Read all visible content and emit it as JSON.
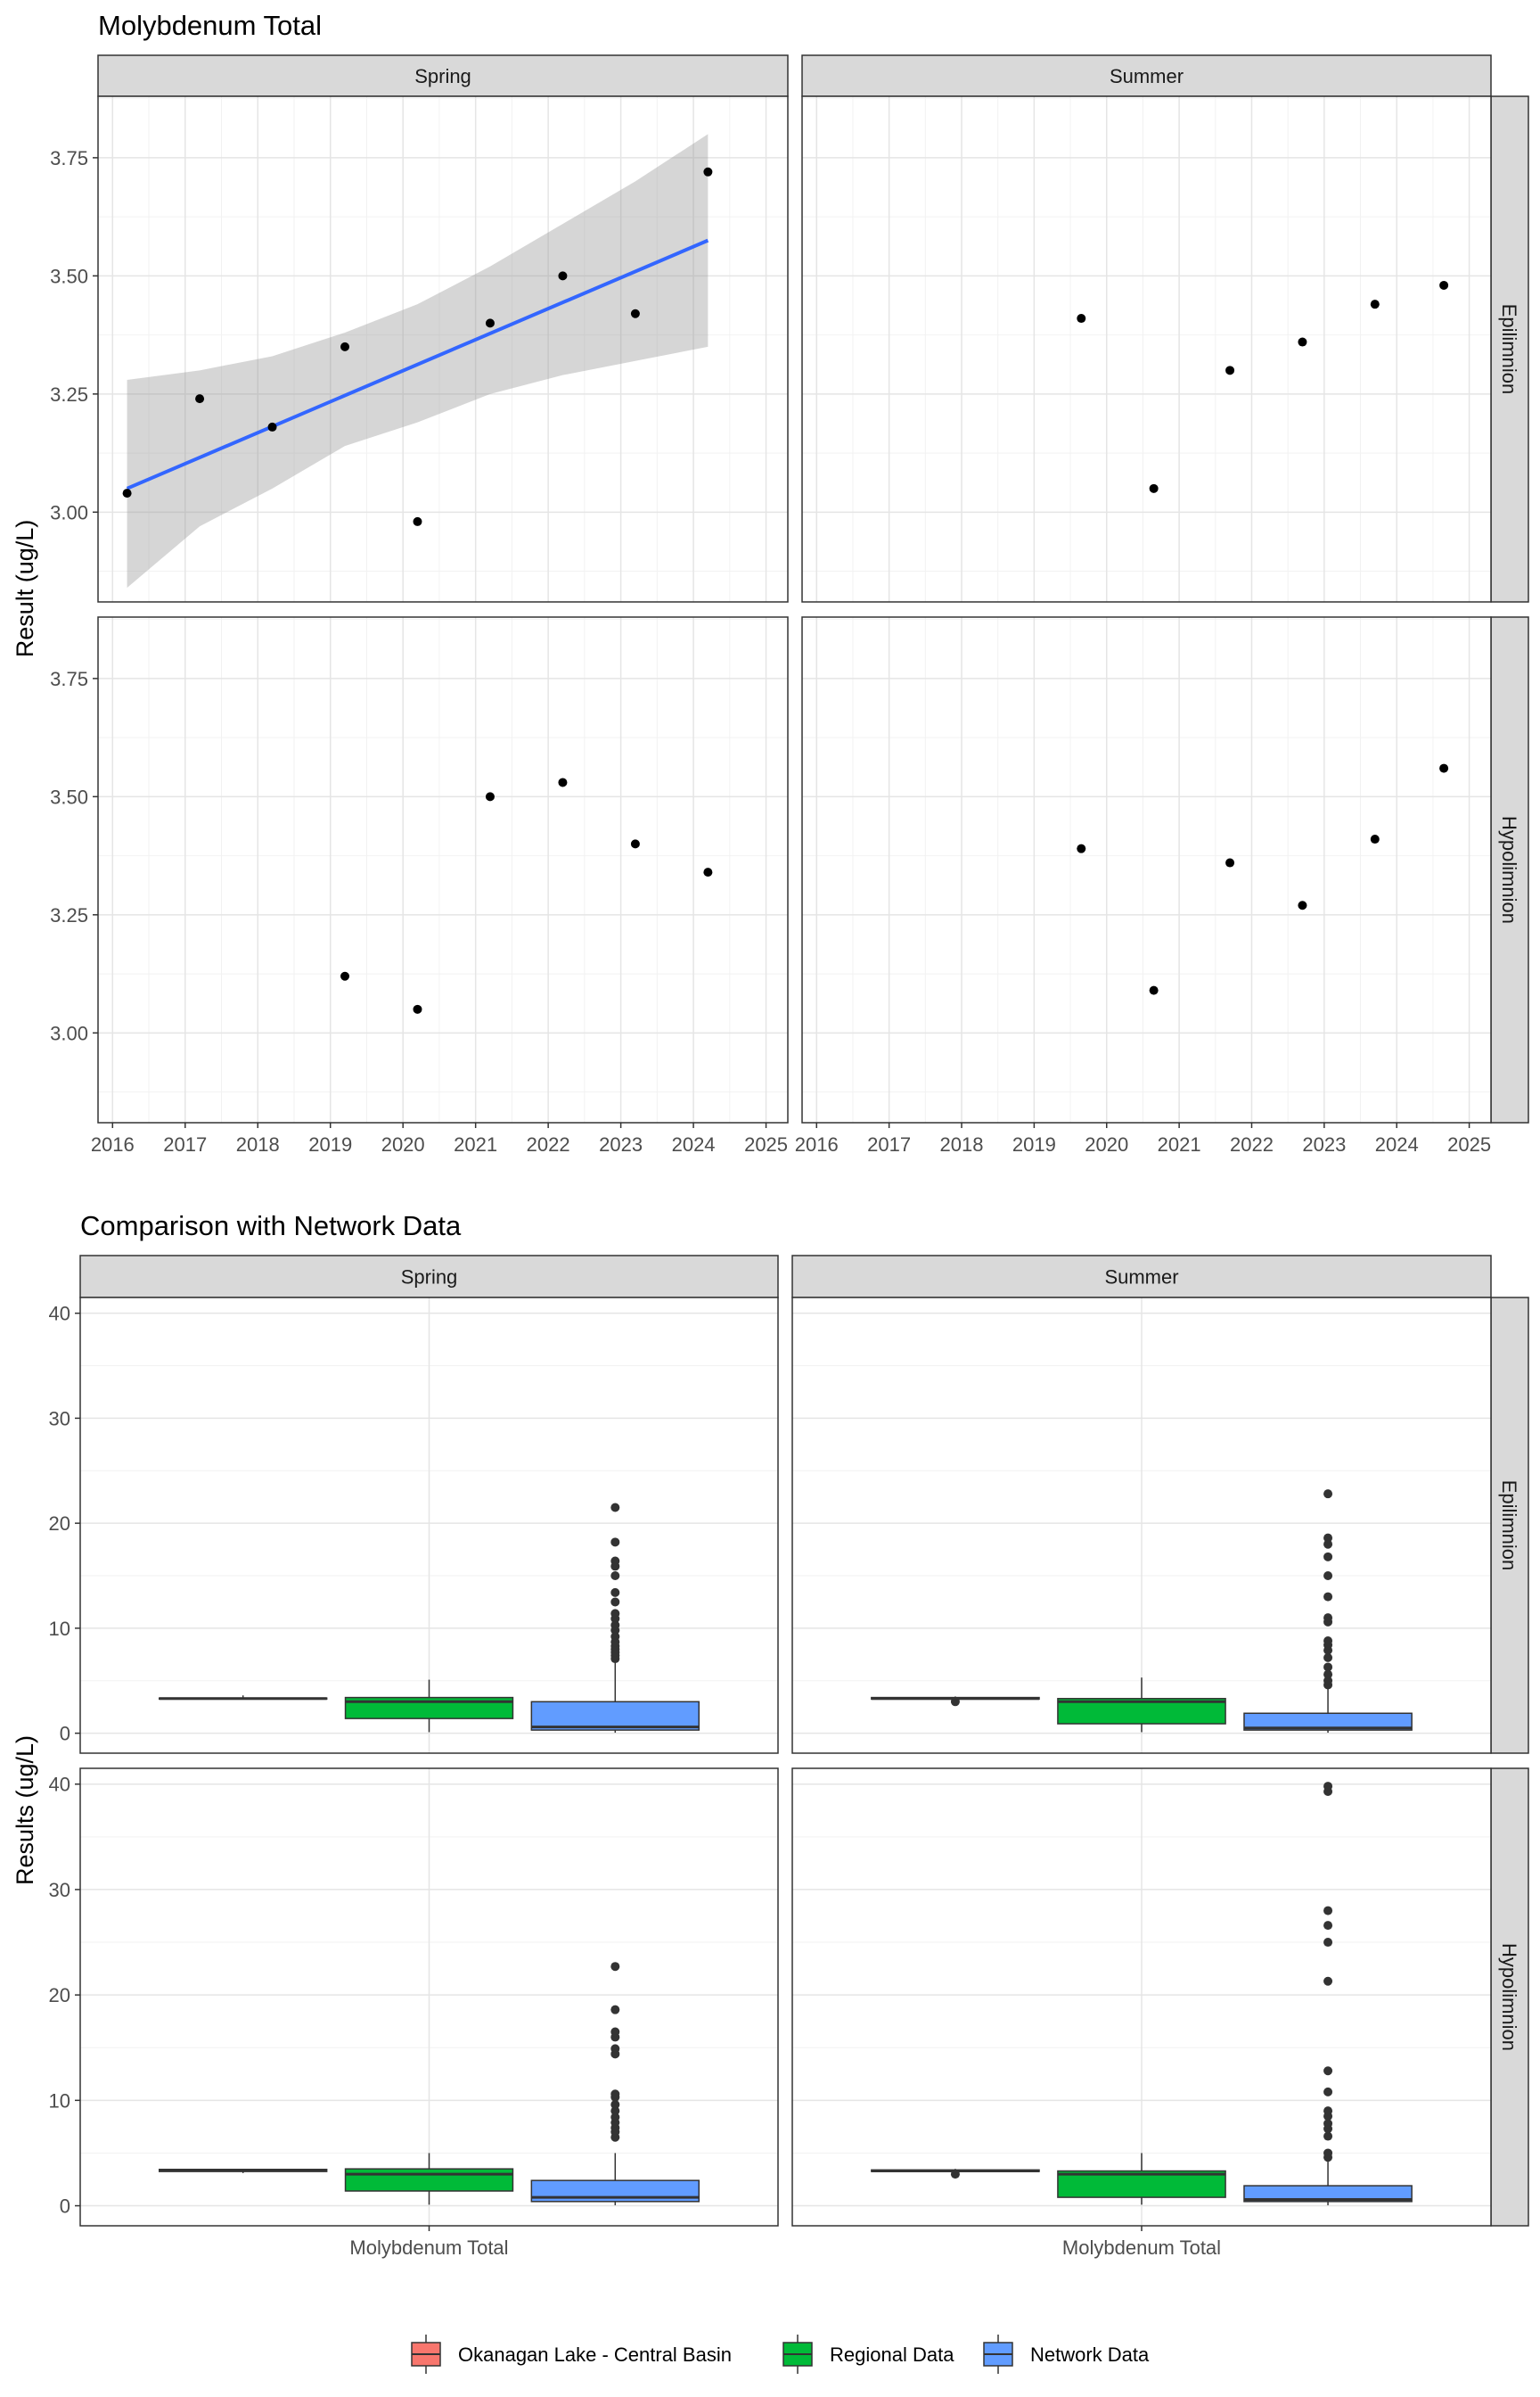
{
  "chart_data": [
    {
      "type": "scatter",
      "title": "Molybdenum Total",
      "ylabel": "Result (ug/L)",
      "xlabel": "",
      "facet_cols": [
        "Spring",
        "Summer"
      ],
      "facet_rows": [
        "Epilimnion",
        "Hypolimnion"
      ],
      "xlim": [
        2015.8,
        2025.3
      ],
      "ylim": [
        2.81,
        3.88
      ],
      "x_ticks": [
        2016,
        2017,
        2018,
        2019,
        2020,
        2021,
        2022,
        2023,
        2024,
        2025
      ],
      "y_ticks": [
        3.0,
        3.25,
        3.5,
        3.75
      ],
      "y_tick_labels": [
        "3.00",
        "3.25",
        "3.50",
        "3.75"
      ],
      "grid": true,
      "panels": [
        {
          "col": "Spring",
          "row": "Epilimnion",
          "points": [
            {
              "x": 2016.2,
              "y": 3.04
            },
            {
              "x": 2017.2,
              "y": 3.24
            },
            {
              "x": 2018.2,
              "y": 3.18
            },
            {
              "x": 2019.2,
              "y": 3.35
            },
            {
              "x": 2020.2,
              "y": 2.98
            },
            {
              "x": 2021.2,
              "y": 3.4
            },
            {
              "x": 2022.2,
              "y": 3.5
            },
            {
              "x": 2023.2,
              "y": 3.42
            },
            {
              "x": 2024.2,
              "y": 3.72
            }
          ],
          "trend": {
            "x": [
              2016.2,
              2024.2
            ],
            "y": [
              3.05,
              3.575
            ],
            "color": "#3366FF"
          },
          "ribbon": [
            {
              "x": 2016.2,
              "lo": 2.84,
              "hi": 3.28
            },
            {
              "x": 2017.2,
              "lo": 2.97,
              "hi": 3.3
            },
            {
              "x": 2018.2,
              "lo": 3.05,
              "hi": 3.33
            },
            {
              "x": 2019.2,
              "lo": 3.14,
              "hi": 3.38
            },
            {
              "x": 2020.2,
              "lo": 3.19,
              "hi": 3.44
            },
            {
              "x": 2021.2,
              "lo": 3.25,
              "hi": 3.52
            },
            {
              "x": 2022.2,
              "lo": 3.29,
              "hi": 3.61
            },
            {
              "x": 2023.2,
              "lo": 3.32,
              "hi": 3.7
            },
            {
              "x": 2024.2,
              "lo": 3.35,
              "hi": 3.8
            }
          ]
        },
        {
          "col": "Summer",
          "row": "Epilimnion",
          "points": [
            {
              "x": 2019.65,
              "y": 3.41
            },
            {
              "x": 2020.65,
              "y": 3.05
            },
            {
              "x": 2021.7,
              "y": 3.3
            },
            {
              "x": 2022.7,
              "y": 3.36
            },
            {
              "x": 2023.7,
              "y": 3.44
            },
            {
              "x": 2024.65,
              "y": 3.48
            }
          ]
        },
        {
          "col": "Spring",
          "row": "Hypolimnion",
          "points": [
            {
              "x": 2019.2,
              "y": 3.12
            },
            {
              "x": 2020.2,
              "y": 3.05
            },
            {
              "x": 2021.2,
              "y": 3.5
            },
            {
              "x": 2022.2,
              "y": 3.53
            },
            {
              "x": 2023.2,
              "y": 3.4
            },
            {
              "x": 2024.2,
              "y": 3.34
            }
          ]
        },
        {
          "col": "Summer",
          "row": "Hypolimnion",
          "points": [
            {
              "x": 2019.65,
              "y": 3.39
            },
            {
              "x": 2020.65,
              "y": 3.09
            },
            {
              "x": 2021.7,
              "y": 3.36
            },
            {
              "x": 2022.7,
              "y": 3.27
            },
            {
              "x": 2023.7,
              "y": 3.41
            },
            {
              "x": 2024.65,
              "y": 3.56
            }
          ]
        }
      ]
    },
    {
      "type": "box",
      "title": "Comparison with Network Data",
      "ylabel": "Results (ug/L)",
      "xlabel": "",
      "category": "Molybdenum Total",
      "facet_cols": [
        "Spring",
        "Summer"
      ],
      "facet_rows": [
        "Epilimnion",
        "Hypolimnion"
      ],
      "ylim": [
        -1.9,
        41.5
      ],
      "y_ticks": [
        0,
        10,
        20,
        30,
        40
      ],
      "grid": true,
      "legend": {
        "position": "bottom",
        "entries": [
          {
            "name": "Okanagan Lake - Central Basin",
            "color": "#F8766D"
          },
          {
            "name": "Regional Data",
            "color": "#00BA38"
          },
          {
            "name": "Network Data",
            "color": "#619CFF"
          }
        ]
      },
      "panels": [
        {
          "col": "Spring",
          "row": "Epilimnion",
          "boxes": [
            {
              "group": "Okanagan Lake - Central Basin",
              "min": 3.2,
              "q1": 3.25,
              "median": 3.3,
              "q3": 3.35,
              "max": 3.6,
              "outliers": []
            },
            {
              "group": "Regional Data",
              "min": 0.1,
              "q1": 1.4,
              "median": 3.0,
              "q3": 3.4,
              "max": 5.1,
              "outliers": []
            },
            {
              "group": "Network Data",
              "min": 0.05,
              "q1": 0.3,
              "median": 0.6,
              "q3": 3.0,
              "max": 6.9,
              "outliers": [
                7.1,
                7.4,
                7.7,
                8.0,
                8.3,
                8.7,
                9.2,
                9.8,
                10.3,
                10.9,
                11.4,
                12.5,
                13.4,
                15.0,
                15.9,
                16.4,
                18.2,
                21.5
              ]
            }
          ]
        },
        {
          "col": "Summer",
          "row": "Epilimnion",
          "boxes": [
            {
              "group": "Okanagan Lake - Central Basin",
              "min": 3.0,
              "q1": 3.25,
              "median": 3.3,
              "q3": 3.4,
              "max": 3.5,
              "outliers": [
                3.0
              ]
            },
            {
              "group": "Regional Data",
              "min": 0.1,
              "q1": 0.9,
              "median": 3.0,
              "q3": 3.3,
              "max": 5.3,
              "outliers": []
            },
            {
              "group": "Network Data",
              "min": 0.05,
              "q1": 0.3,
              "median": 0.5,
              "q3": 1.9,
              "max": 4.4,
              "outliers": [
                4.6,
                5.0,
                5.6,
                6.3,
                7.2,
                7.9,
                8.4,
                8.8,
                10.6,
                11.0,
                13.0,
                15.0,
                16.8,
                18.0,
                18.6,
                22.8
              ]
            }
          ]
        },
        {
          "col": "Spring",
          "row": "Hypolimnion",
          "boxes": [
            {
              "group": "Okanagan Lake - Central Basin",
              "min": 3.1,
              "q1": 3.25,
              "median": 3.35,
              "q3": 3.45,
              "max": 3.5,
              "outliers": []
            },
            {
              "group": "Regional Data",
              "min": 0.1,
              "q1": 1.4,
              "median": 3.0,
              "q3": 3.5,
              "max": 5.0,
              "outliers": []
            },
            {
              "group": "Network Data",
              "min": 0.05,
              "q1": 0.4,
              "median": 0.8,
              "q3": 2.4,
              "max": 5.0,
              "outliers": [
                6.5,
                7.0,
                7.4,
                7.9,
                8.4,
                9.0,
                9.6,
                10.3,
                10.6,
                14.4,
                14.9,
                16.0,
                16.5,
                18.6,
                22.7
              ]
            }
          ]
        },
        {
          "col": "Summer",
          "row": "Hypolimnion",
          "boxes": [
            {
              "group": "Okanagan Lake - Central Basin",
              "min": 3.0,
              "q1": 3.25,
              "median": 3.3,
              "q3": 3.4,
              "max": 3.5,
              "outliers": [
                3.0
              ]
            },
            {
              "group": "Regional Data",
              "min": 0.1,
              "q1": 0.8,
              "median": 3.0,
              "q3": 3.3,
              "max": 5.0,
              "outliers": []
            },
            {
              "group": "Network Data",
              "min": 0.05,
              "q1": 0.4,
              "median": 0.6,
              "q3": 1.9,
              "max": 4.3,
              "outliers": [
                4.6,
                5.0,
                6.6,
                7.3,
                7.8,
                8.5,
                9.0,
                10.8,
                12.8,
                21.3,
                25.0,
                26.6,
                28.0,
                39.3,
                39.8
              ]
            }
          ]
        }
      ]
    }
  ]
}
